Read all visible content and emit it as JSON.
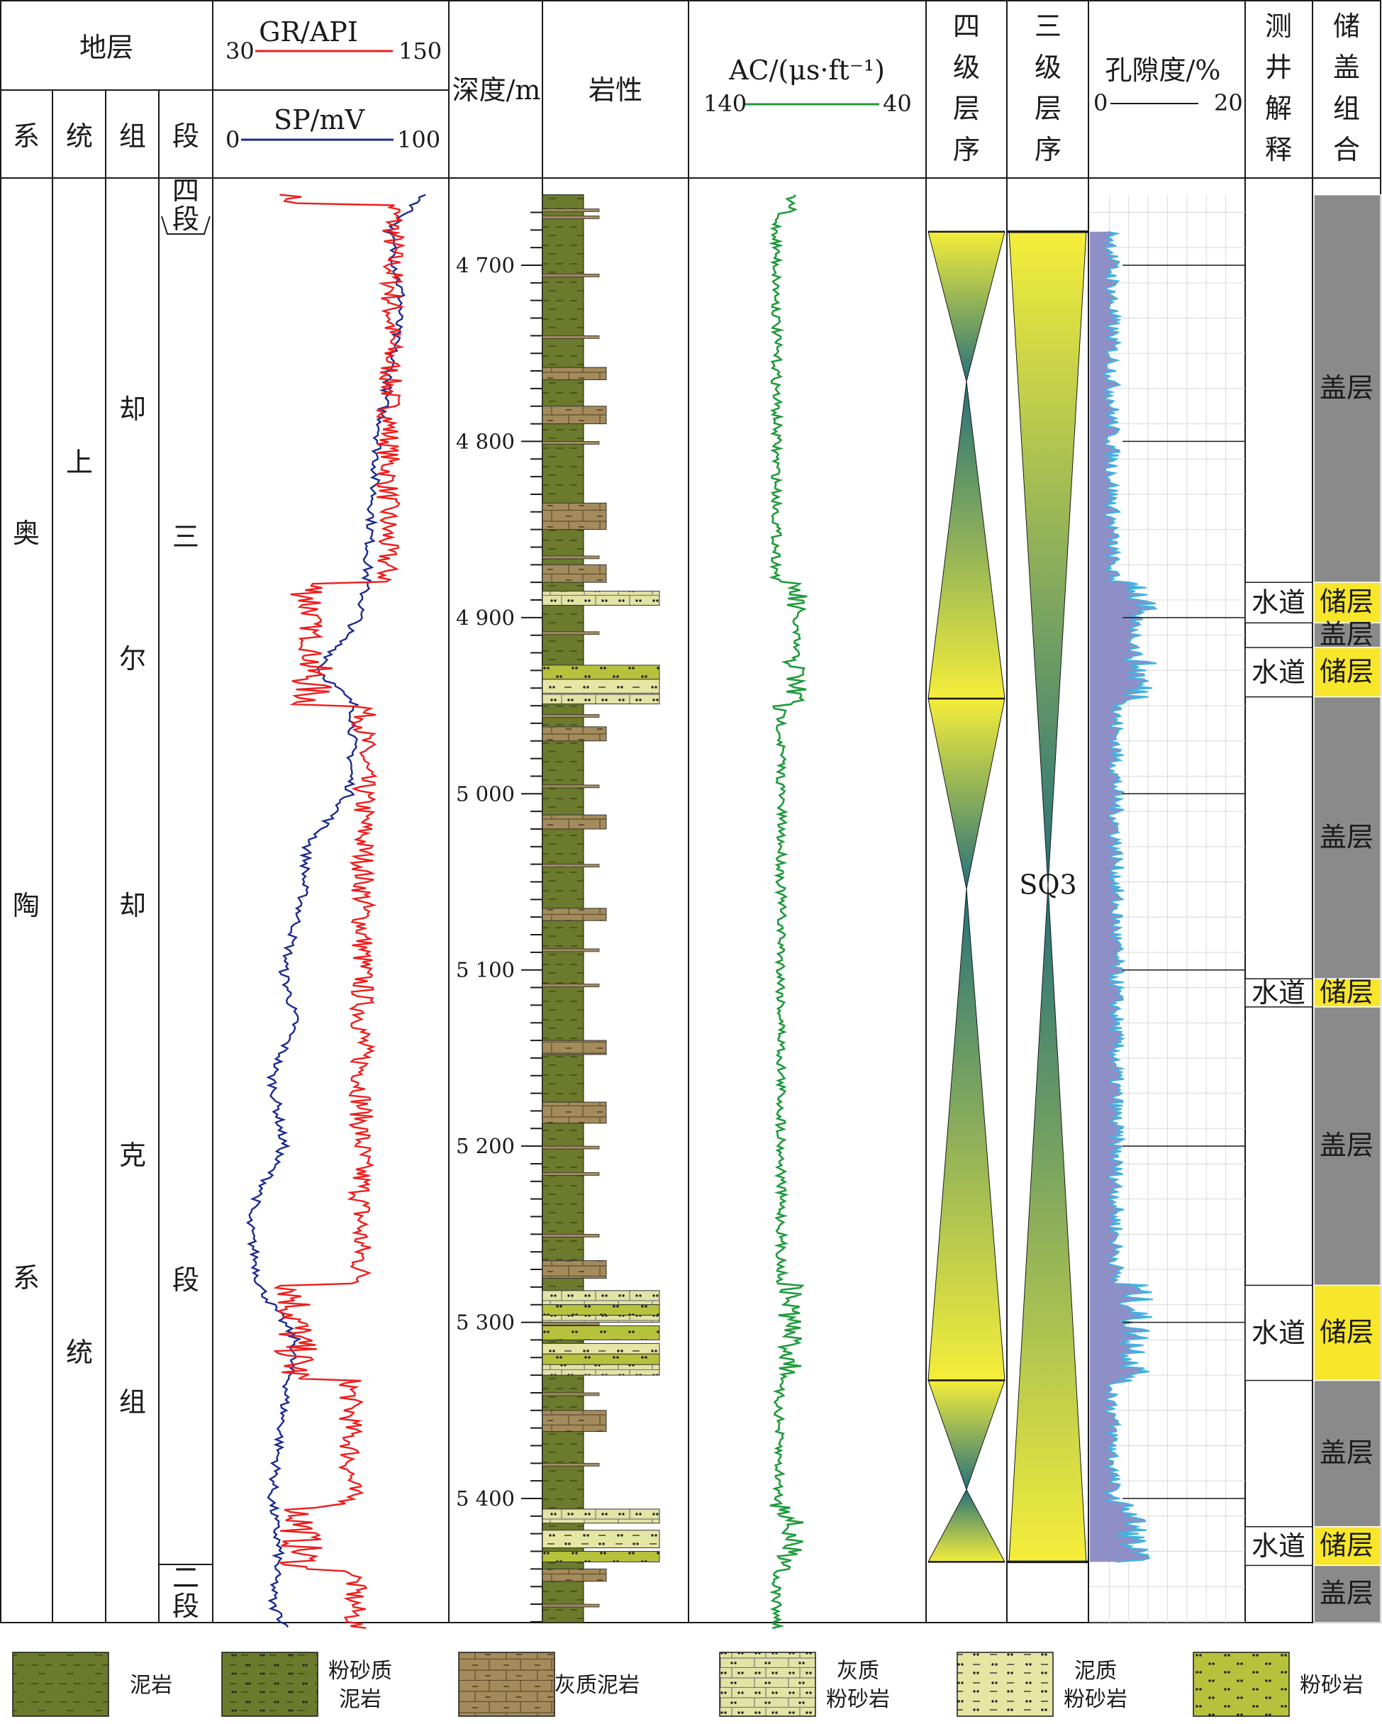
{
  "header": {
    "stratum": "地层",
    "system": "系",
    "series": "统",
    "formation": "组",
    "member": "段",
    "gr_title": "GR/API",
    "gr_min": "30",
    "gr_max": "150",
    "sp_title": "SP/mV",
    "sp_min": "0",
    "sp_max": "100",
    "depth": "深度/m",
    "lithology": "岩性",
    "ac_title": "AC/(μs·ft⁻¹)",
    "ac_min": "140",
    "ac_max": "40",
    "fourth_order": [
      "四",
      "级",
      "层",
      "序"
    ],
    "third_order": [
      "三",
      "级",
      "层",
      "序"
    ],
    "porosity_title": "孔隙度/%",
    "por_min": "0",
    "por_max": "20",
    "log_interp": [
      "测",
      "井",
      "解",
      "释"
    ],
    "reservoir_seal": [
      "储",
      "盖",
      "组",
      "合"
    ]
  },
  "strat": {
    "system": [
      "奥",
      "陶",
      "系"
    ],
    "series": [
      "上",
      "统"
    ],
    "formation": [
      "却",
      "尔",
      "却",
      "克",
      "组"
    ],
    "member4": [
      "四",
      "段"
    ],
    "member3": [
      "三",
      "段"
    ],
    "member2": [
      "二",
      "段"
    ]
  },
  "depth_ticks": [
    "4 700",
    "4 800",
    "4 900",
    "5 000",
    "5 100",
    "5 200",
    "5 300",
    "5 400"
  ],
  "sequence_label": "SQ3",
  "interpretation": [
    {
      "label": "水道",
      "top": 4880,
      "bottom": 4903
    },
    {
      "label": "水道",
      "top": 4917,
      "bottom": 4945
    },
    {
      "label": "水道",
      "top": 5105,
      "bottom": 5121
    },
    {
      "label": "水道",
      "top": 5279,
      "bottom": 5333
    },
    {
      "label": "水道",
      "top": 5416,
      "bottom": 5438
    }
  ],
  "reservoir_seal": [
    {
      "label": "盖层",
      "top": 4660,
      "bottom": 4880,
      "kind": "seal"
    },
    {
      "label": "储层",
      "top": 4880,
      "bottom": 4903,
      "kind": "reservoir"
    },
    {
      "label": "盖层",
      "top": 4903,
      "bottom": 4917,
      "kind": "seal"
    },
    {
      "label": "储层",
      "top": 4917,
      "bottom": 4945,
      "kind": "reservoir"
    },
    {
      "label": "盖层",
      "top": 4945,
      "bottom": 5105,
      "kind": "seal"
    },
    {
      "label": "储层",
      "top": 5105,
      "bottom": 5121,
      "kind": "reservoir"
    },
    {
      "label": "盖层",
      "top": 5121,
      "bottom": 5279,
      "kind": "seal"
    },
    {
      "label": "储层",
      "top": 5279,
      "bottom": 5333,
      "kind": "reservoir"
    },
    {
      "label": "盖层",
      "top": 5333,
      "bottom": 5416,
      "kind": "seal"
    },
    {
      "label": "储层",
      "top": 5416,
      "bottom": 5438,
      "kind": "reservoir"
    },
    {
      "label": "盖层",
      "top": 5438,
      "bottom": 5474,
      "kind": "seal"
    }
  ],
  "fourth_order_sequences": [
    {
      "top": 4681,
      "turn": 4766,
      "bottom": 4946
    },
    {
      "top": 4946,
      "turn": 5054,
      "bottom": 5333
    },
    {
      "top": 5333,
      "turn": 5395,
      "bottom": 5436
    }
  ],
  "third_order_sequence": {
    "top": 4681,
    "turn": 5052,
    "bottom": 5436
  },
  "reservoir_intervals": [
    {
      "top": 4885,
      "bottom": 4893,
      "lith": "calc_silt"
    },
    {
      "top": 4927,
      "bottom": 4935,
      "lith": "siltstone"
    },
    {
      "top": 4935,
      "bottom": 4943,
      "lith": "arg_silt"
    },
    {
      "top": 4943,
      "bottom": 4949,
      "lith": "calc_silt"
    },
    {
      "top": 5282,
      "bottom": 5290,
      "lith": "calc_silt"
    },
    {
      "top": 5290,
      "bottom": 5296,
      "lith": "siltstone"
    },
    {
      "top": 5296,
      "bottom": 5300,
      "lith": "calc_silt"
    },
    {
      "top": 5302,
      "bottom": 5310,
      "lith": "siltstone"
    },
    {
      "top": 5312,
      "bottom": 5318,
      "lith": "arg_silt"
    },
    {
      "top": 5318,
      "bottom": 5324,
      "lith": "siltstone"
    },
    {
      "top": 5324,
      "bottom": 5330,
      "lith": "calc_silt"
    },
    {
      "top": 5406,
      "bottom": 5414,
      "lith": "calc_silt"
    },
    {
      "top": 5418,
      "bottom": 5428,
      "lith": "arg_silt"
    },
    {
      "top": 5430,
      "bottom": 5436,
      "lith": "siltstone"
    }
  ],
  "legend": [
    {
      "id": "mudstone",
      "label": [
        "泥岩"
      ],
      "color": "#6b7a2c"
    },
    {
      "id": "silty_mud",
      "label": [
        "粉砂质",
        "泥岩"
      ],
      "color": "#6b7a2c"
    },
    {
      "id": "calc_mud",
      "label": [
        "灰质泥岩"
      ],
      "color": "#a38b5c"
    },
    {
      "id": "calc_silt",
      "label": [
        "灰质",
        "粉砂岩"
      ],
      "color": "#e2e4a6"
    },
    {
      "id": "arg_silt",
      "label": [
        "泥质",
        "粉砂岩"
      ],
      "color": "#e6e6a4"
    },
    {
      "id": "siltstone",
      "label": [
        "粉砂岩"
      ],
      "color": "#b6c23c"
    }
  ],
  "colors": {
    "gr": "#ee1c1c",
    "sp": "#1b2a8f",
    "ac": "#1f9a3c",
    "porosity_fill": "#8f8fc8",
    "porosity_line": "#3fb3e3",
    "seal": "#8a8a8a",
    "reservoir": "#f7e62a"
  }
}
